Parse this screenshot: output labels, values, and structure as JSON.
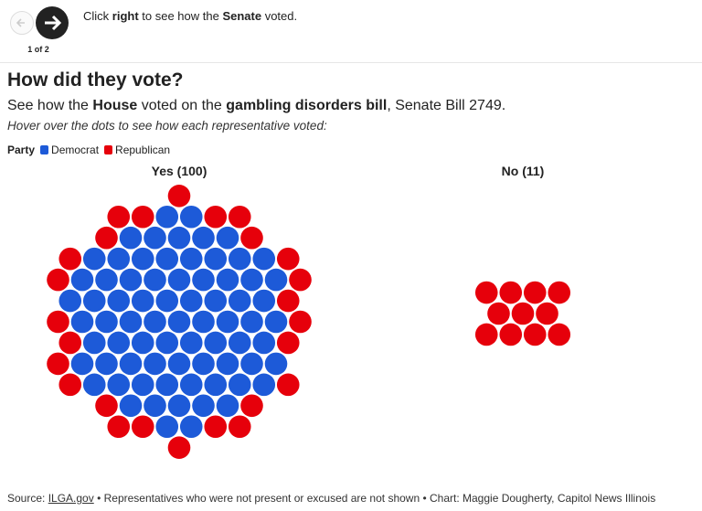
{
  "nav": {
    "instruction": [
      "Click ",
      "right",
      " to see how the ",
      "Senate",
      " voted."
    ],
    "page": "1 of 2"
  },
  "chart_data": {
    "type": "dot-cluster",
    "title": "How did they vote?",
    "subtitle": [
      "See how the ",
      "House",
      " voted on the ",
      "gambling disorders bill",
      ", Senate Bill 2749."
    ],
    "note": "Hover over the dots to see how each representative voted:",
    "legend_title": "Party",
    "categories": [
      "Yes (100)",
      "No (11)"
    ],
    "series": [
      {
        "name": "Democrat",
        "color": "#1d5ad8",
        "values": [
          74,
          0
        ]
      },
      {
        "name": "Republican",
        "color": "#e6000b",
        "values": [
          26,
          11
        ]
      }
    ],
    "source": [
      "Source: ",
      "ILGA.gov",
      " • Representatives who were not present or excused are not shown • Chart: Maggie Dougherty, Capitol News Illinois"
    ]
  }
}
